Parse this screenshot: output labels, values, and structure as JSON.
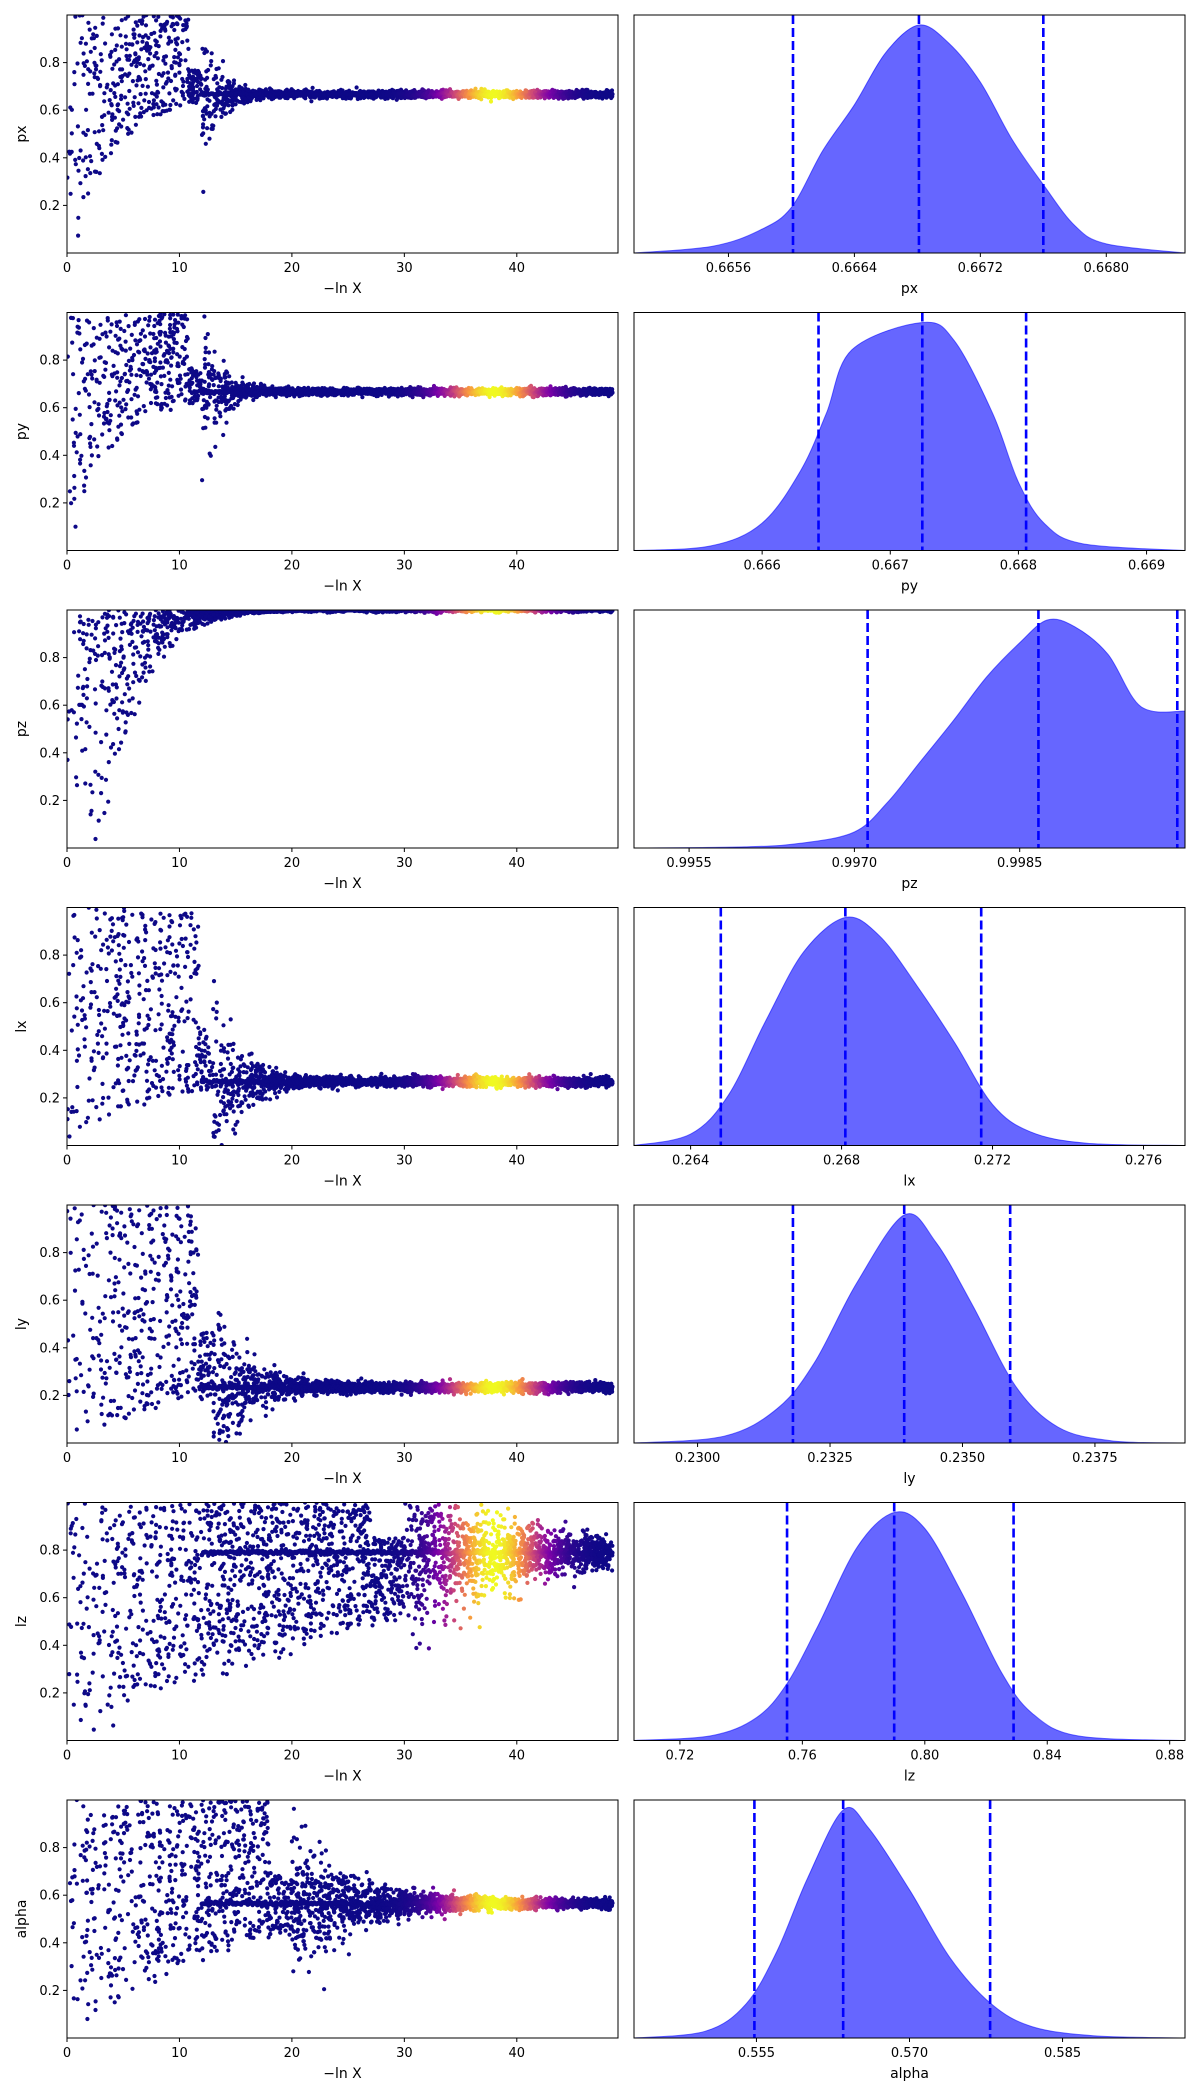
{
  "chart_data": [
    {
      "type": "scatter",
      "ylabel": "px",
      "xlabel": "−ln X",
      "xlim": [
        0,
        49
      ],
      "ylim": [
        0,
        1
      ],
      "xticks": [
        0,
        10,
        20,
        30,
        40
      ],
      "yticks": [
        0.2,
        0.4,
        0.6,
        0.8
      ],
      "converged_value": 0.667,
      "colormap": [
        "#0d0887",
        "#7e03a8",
        "#cc4778",
        "#f89540",
        "#f0f921"
      ]
    },
    {
      "type": "area",
      "xlabel": "px",
      "xlim": [
        0.665,
        0.6685
      ],
      "xticks": [
        "0.6656",
        "0.6664",
        "0.6672",
        "0.6680"
      ],
      "median": 0.66681,
      "quantile_lines": [
        0.66601,
        0.66681,
        0.6676
      ],
      "density": {
        "x": [
          0.665,
          0.6655,
          0.6658,
          0.666,
          0.6662,
          0.6664,
          0.6666,
          0.66681,
          0.667,
          0.6672,
          0.6674,
          0.6676,
          0.6678,
          0.668,
          0.6685
        ],
        "y": [
          0.0,
          0.03,
          0.1,
          0.2,
          0.45,
          0.65,
          0.88,
          1.0,
          0.92,
          0.75,
          0.5,
          0.3,
          0.12,
          0.04,
          0.0
        ]
      },
      "fill_color": "#6666ff",
      "line_color": "#0000ff"
    },
    {
      "type": "scatter",
      "ylabel": "py",
      "xlabel": "−ln X",
      "xlim": [
        0,
        49
      ],
      "ylim": [
        0,
        1
      ],
      "xticks": [
        0,
        10,
        20,
        30,
        40
      ],
      "yticks": [
        0.2,
        0.4,
        0.6,
        0.8
      ],
      "converged_value": 0.667,
      "colormap": [
        "#0d0887",
        "#7e03a8",
        "#cc4778",
        "#f89540",
        "#f0f921"
      ]
    },
    {
      "type": "area",
      "xlabel": "py",
      "xlim": [
        0.665,
        0.6693
      ],
      "xticks": [
        "0.666",
        "0.667",
        "0.668",
        "0.669"
      ],
      "median": 0.66725,
      "quantile_lines": [
        0.66644,
        0.66725,
        0.66806
      ],
      "density": {
        "x": [
          0.665,
          0.6656,
          0.666,
          0.6663,
          0.6665,
          0.6667,
          0.66725,
          0.6675,
          0.6678,
          0.668,
          0.6682,
          0.6685,
          0.6693
        ],
        "y": [
          0.0,
          0.02,
          0.12,
          0.35,
          0.6,
          0.88,
          1.0,
          0.92,
          0.6,
          0.3,
          0.12,
          0.03,
          0.0
        ]
      },
      "fill_color": "#6666ff",
      "line_color": "#0000ff"
    },
    {
      "type": "scatter",
      "ylabel": "pz",
      "xlabel": "−ln X",
      "xlim": [
        0,
        49
      ],
      "ylim": [
        0,
        1
      ],
      "xticks": [
        0,
        10,
        20,
        30,
        40
      ],
      "yticks": [
        0.2,
        0.4,
        0.6,
        0.8
      ],
      "converged_value": 0.998,
      "colormap": [
        "#0d0887",
        "#7e03a8",
        "#cc4778",
        "#f89540",
        "#f0f921"
      ]
    },
    {
      "type": "area",
      "xlabel": "pz",
      "xlim": [
        0.995,
        1.0
      ],
      "xticks": [
        "0.9955",
        "0.9970",
        "0.9985"
      ],
      "median": 0.99867,
      "quantile_lines": [
        0.99712,
        0.99867,
        0.99993
      ],
      "density": {
        "x": [
          0.995,
          0.996,
          0.9965,
          0.997,
          0.9973,
          0.9976,
          0.9979,
          0.9982,
          0.9985,
          0.99875,
          0.999,
          0.9993,
          0.9996,
          1.0
        ],
        "y": [
          0.0,
          0.005,
          0.02,
          0.07,
          0.2,
          0.38,
          0.56,
          0.75,
          0.9,
          1.0,
          0.97,
          0.85,
          0.62,
          0.6
        ]
      },
      "fill_color": "#6666ff",
      "line_color": "#0000ff"
    },
    {
      "type": "scatter",
      "ylabel": "lx",
      "xlabel": "−ln X",
      "xlim": [
        0,
        49
      ],
      "ylim": [
        0,
        1
      ],
      "xticks": [
        0,
        10,
        20,
        30,
        40
      ],
      "yticks": [
        0.2,
        0.4,
        0.6,
        0.8
      ],
      "converged_value": 0.268,
      "colormap": [
        "#0d0887",
        "#7e03a8",
        "#cc4778",
        "#f89540",
        "#f0f921"
      ]
    },
    {
      "type": "area",
      "xlabel": "lx",
      "xlim": [
        0.2625,
        0.2771
      ],
      "xticks": [
        "0.264",
        "0.268",
        "0.272",
        "0.276"
      ],
      "median": 0.2681,
      "quantile_lines": [
        0.2648,
        0.2681,
        0.2717
      ],
      "density": {
        "x": [
          0.2625,
          0.264,
          0.265,
          0.266,
          0.267,
          0.2681,
          0.269,
          0.27,
          0.271,
          0.272,
          0.273,
          0.2745,
          0.2771
        ],
        "y": [
          0.0,
          0.05,
          0.22,
          0.55,
          0.85,
          1.0,
          0.92,
          0.7,
          0.45,
          0.18,
          0.06,
          0.01,
          0.0
        ]
      },
      "fill_color": "#6666ff",
      "line_color": "#0000ff"
    },
    {
      "type": "scatter",
      "ylabel": "ly",
      "xlabel": "−ln X",
      "xlim": [
        0,
        49
      ],
      "ylim": [
        0,
        1
      ],
      "xticks": [
        0,
        10,
        20,
        30,
        40
      ],
      "yticks": [
        0.2,
        0.4,
        0.6,
        0.8
      ],
      "converged_value": 0.234,
      "colormap": [
        "#0d0887",
        "#7e03a8",
        "#cc4778",
        "#f89540",
        "#f0f921"
      ]
    },
    {
      "type": "area",
      "xlabel": "ly",
      "xlim": [
        0.2288,
        0.2392
      ],
      "xticks": [
        "0.2300",
        "0.2325",
        "0.2350",
        "0.2375"
      ],
      "median": 0.2339,
      "quantile_lines": [
        0.2318,
        0.2339,
        0.2359
      ],
      "density": {
        "x": [
          0.2288,
          0.2305,
          0.2315,
          0.2322,
          0.233,
          0.2339,
          0.2345,
          0.2352,
          0.236,
          0.2368,
          0.2378,
          0.2392
        ],
        "y": [
          0.0,
          0.03,
          0.15,
          0.35,
          0.7,
          1.0,
          0.88,
          0.6,
          0.25,
          0.07,
          0.01,
          0.0
        ]
      },
      "fill_color": "#6666ff",
      "line_color": "#0000ff"
    },
    {
      "type": "scatter",
      "ylabel": "lz",
      "xlabel": "−ln X",
      "xlim": [
        0,
        49
      ],
      "ylim": [
        0,
        1
      ],
      "xticks": [
        0,
        10,
        20,
        30,
        40
      ],
      "yticks": [
        0.2,
        0.4,
        0.6,
        0.8
      ],
      "converged_value": 0.79,
      "colormap": [
        "#0d0887",
        "#7e03a8",
        "#cc4778",
        "#f89540",
        "#f0f921"
      ]
    },
    {
      "type": "area",
      "xlabel": "lz",
      "xlim": [
        0.705,
        0.885
      ],
      "xticks": [
        "0.72",
        "0.76",
        "0.80",
        "0.84",
        "0.88"
      ],
      "median": 0.79,
      "quantile_lines": [
        0.755,
        0.79,
        0.829
      ],
      "density": {
        "x": [
          0.705,
          0.73,
          0.745,
          0.755,
          0.765,
          0.778,
          0.79,
          0.8,
          0.812,
          0.825,
          0.835,
          0.85,
          0.885
        ],
        "y": [
          0.0,
          0.02,
          0.1,
          0.25,
          0.5,
          0.85,
          1.0,
          0.93,
          0.65,
          0.3,
          0.12,
          0.02,
          0.0
        ]
      },
      "fill_color": "#6666ff",
      "line_color": "#0000ff"
    },
    {
      "type": "scatter",
      "ylabel": "alpha",
      "xlabel": "−ln X",
      "xlim": [
        0,
        49
      ],
      "ylim": [
        0,
        1
      ],
      "xticks": [
        0,
        10,
        20,
        30,
        40
      ],
      "yticks": [
        0.2,
        0.4,
        0.6,
        0.8
      ],
      "converged_value": 0.565,
      "colormap": [
        "#0d0887",
        "#7e03a8",
        "#cc4778",
        "#f89540",
        "#f0f921"
      ]
    },
    {
      "type": "area",
      "xlabel": "alpha",
      "xlim": [
        0.543,
        0.597
      ],
      "xticks": [
        "0.555",
        "0.570",
        "0.585"
      ],
      "median": 0.5635,
      "quantile_lines": [
        0.5548,
        0.5635,
        0.5779
      ],
      "density": {
        "x": [
          0.543,
          0.55,
          0.554,
          0.557,
          0.56,
          0.5635,
          0.566,
          0.57,
          0.574,
          0.578,
          0.582,
          0.588,
          0.597
        ],
        "y": [
          0.0,
          0.03,
          0.15,
          0.38,
          0.7,
          1.0,
          0.92,
          0.65,
          0.35,
          0.15,
          0.05,
          0.01,
          0.0
        ]
      },
      "fill_color": "#6666ff",
      "line_color": "#0000ff"
    }
  ]
}
